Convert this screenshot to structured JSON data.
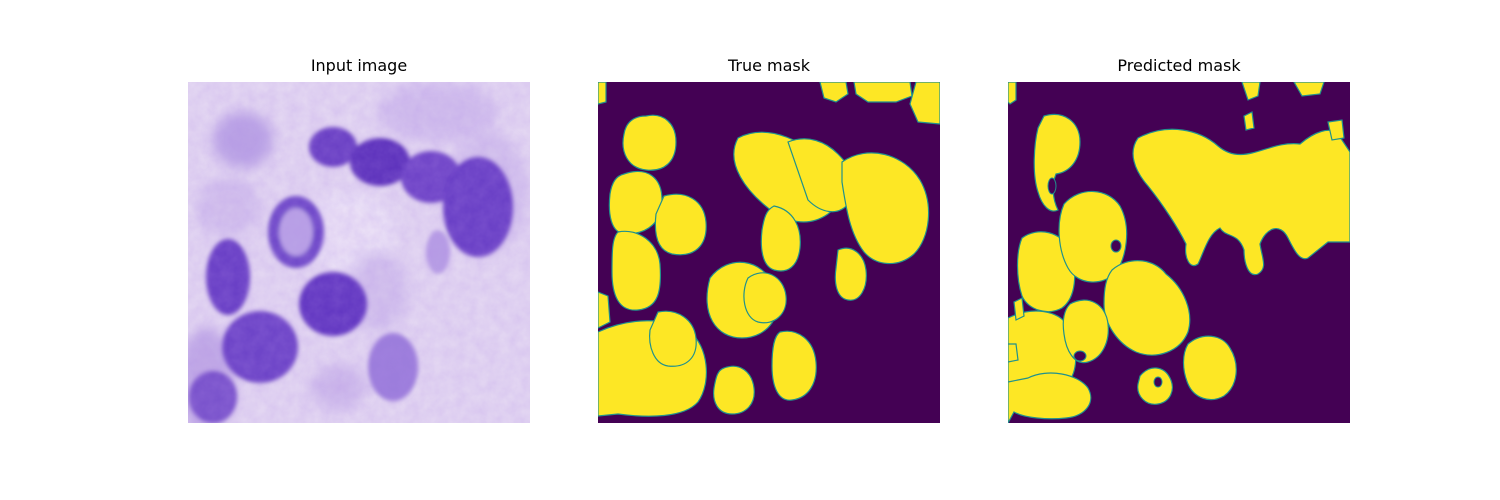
{
  "panels": [
    {
      "title": "Input image"
    },
    {
      "title": "True mask"
    },
    {
      "title": "Predicted mask"
    }
  ],
  "colors": {
    "mask_background": "#440154",
    "mask_foreground": "#fde725",
    "mask_edge": "#21918c",
    "stain_background": "#e6d9f3",
    "nucleus_fill": "#6a3fc4",
    "nucleus_dark": "#4b22a8"
  }
}
